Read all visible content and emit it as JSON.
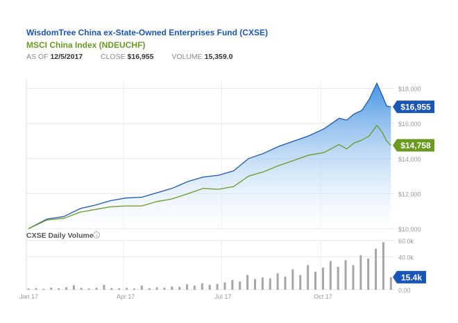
{
  "header": {
    "fund_title": "WisdomTree China ex-State-Owned Enterprises Fund (CXSE)",
    "index_title": "MSCI China Index (NDEUCHF)",
    "as_of_label": "AS OF",
    "as_of_value": "12/5/2017",
    "close_label": "CLOSE",
    "close_value": "$16,955",
    "volume_label": "VOLUME",
    "volume_value": "15,359.0"
  },
  "colors": {
    "fund": "#1a56b8",
    "index": "#6a9a1f",
    "fund_fill_top": "#3d8fe0",
    "fund_fill_bottom": "#ffffff",
    "volume_bar": "#a6a6a6"
  },
  "chart_data": [
    {
      "type": "area",
      "ylim": [
        10000,
        18500
      ],
      "x_tick_labels": [
        "Jan 17",
        "Apr 17",
        "Jul 17",
        "Oct 17"
      ],
      "x_tick_dates": [
        "2017-01-01",
        "2017-04-01",
        "2017-07-01",
        "2017-10-01"
      ],
      "y_ticks": [
        10000,
        12000,
        14000,
        16000,
        18000
      ],
      "y_tick_labels": [
        "$10,000",
        "$12,000",
        "$14,000",
        "$16,000",
        "$18,000"
      ],
      "grid": true,
      "series": [
        {
          "name": "WisdomTree China ex-State-Owned Enterprises Fund (CXSE)",
          "end_label": "$16,955",
          "points": [
            [
              "2017-01-03",
              10000
            ],
            [
              "2017-01-20",
              10550
            ],
            [
              "2017-02-05",
              10700
            ],
            [
              "2017-02-20",
              11150
            ],
            [
              "2017-03-06",
              11350
            ],
            [
              "2017-03-20",
              11600
            ],
            [
              "2017-04-03",
              11750
            ],
            [
              "2017-04-18",
              11800
            ],
            [
              "2017-05-02",
              12050
            ],
            [
              "2017-05-16",
              12300
            ],
            [
              "2017-05-31",
              12700
            ],
            [
              "2017-06-14",
              12950
            ],
            [
              "2017-06-28",
              13050
            ],
            [
              "2017-07-12",
              13300
            ],
            [
              "2017-07-26",
              14000
            ],
            [
              "2017-08-09",
              14300
            ],
            [
              "2017-08-23",
              14700
            ],
            [
              "2017-09-06",
              15000
            ],
            [
              "2017-09-20",
              15300
            ],
            [
              "2017-10-04",
              15700
            ],
            [
              "2017-10-18",
              16300
            ],
            [
              "2017-10-25",
              16200
            ],
            [
              "2017-11-01",
              16550
            ],
            [
              "2017-11-08",
              16750
            ],
            [
              "2017-11-15",
              17400
            ],
            [
              "2017-11-22",
              18300
            ],
            [
              "2017-11-27",
              17600
            ],
            [
              "2017-12-01",
              17000
            ],
            [
              "2017-12-05",
              16955
            ]
          ]
        },
        {
          "name": "MSCI China Index (NDEUCHF)",
          "end_label": "$14,758",
          "points": [
            [
              "2017-01-03",
              10000
            ],
            [
              "2017-01-20",
              10500
            ],
            [
              "2017-02-05",
              10600
            ],
            [
              "2017-02-20",
              10950
            ],
            [
              "2017-03-06",
              11100
            ],
            [
              "2017-03-20",
              11250
            ],
            [
              "2017-04-03",
              11300
            ],
            [
              "2017-04-18",
              11300
            ],
            [
              "2017-05-02",
              11550
            ],
            [
              "2017-05-16",
              11700
            ],
            [
              "2017-05-31",
              12000
            ],
            [
              "2017-06-14",
              12300
            ],
            [
              "2017-06-28",
              12250
            ],
            [
              "2017-07-12",
              12400
            ],
            [
              "2017-07-26",
              13000
            ],
            [
              "2017-08-09",
              13250
            ],
            [
              "2017-08-23",
              13600
            ],
            [
              "2017-09-06",
              13900
            ],
            [
              "2017-09-20",
              14200
            ],
            [
              "2017-10-04",
              14350
            ],
            [
              "2017-10-18",
              14800
            ],
            [
              "2017-10-25",
              14550
            ],
            [
              "2017-11-01",
              14900
            ],
            [
              "2017-11-08",
              15050
            ],
            [
              "2017-11-15",
              15300
            ],
            [
              "2017-11-22",
              15900
            ],
            [
              "2017-11-27",
              15500
            ],
            [
              "2017-12-01",
              15000
            ],
            [
              "2017-12-05",
              14758
            ]
          ]
        }
      ]
    },
    {
      "type": "bar",
      "title": "CXSE Daily Volume",
      "ylim": [
        0,
        60000
      ],
      "y_ticks": [
        0,
        40000,
        60000
      ],
      "y_tick_labels": [
        "0.00",
        "40.0k",
        "60.0k"
      ],
      "last_value_label": "15.4k",
      "dates": [
        "2017-01-03",
        "2017-01-10",
        "2017-01-17",
        "2017-01-24",
        "2017-01-31",
        "2017-02-07",
        "2017-02-14",
        "2017-02-21",
        "2017-02-28",
        "2017-03-07",
        "2017-03-14",
        "2017-03-21",
        "2017-03-28",
        "2017-04-04",
        "2017-04-11",
        "2017-04-18",
        "2017-04-25",
        "2017-05-02",
        "2017-05-09",
        "2017-05-16",
        "2017-05-23",
        "2017-05-30",
        "2017-06-06",
        "2017-06-13",
        "2017-06-20",
        "2017-06-27",
        "2017-07-04",
        "2017-07-11",
        "2017-07-18",
        "2017-07-25",
        "2017-08-01",
        "2017-08-08",
        "2017-08-15",
        "2017-08-22",
        "2017-08-29",
        "2017-09-05",
        "2017-09-12",
        "2017-09-19",
        "2017-09-26",
        "2017-10-03",
        "2017-10-10",
        "2017-10-17",
        "2017-10-24",
        "2017-10-31",
        "2017-11-07",
        "2017-11-14",
        "2017-11-21",
        "2017-11-28",
        "2017-12-05"
      ],
      "values": [
        1500,
        2000,
        1200,
        2500,
        1800,
        3000,
        5500,
        2200,
        1500,
        2500,
        6000,
        2000,
        1800,
        2200,
        1500,
        5000,
        2000,
        3000,
        2500,
        4000,
        3500,
        6500,
        5000,
        8000,
        6000,
        7000,
        9000,
        12000,
        10000,
        18000,
        13000,
        15000,
        14000,
        20000,
        16000,
        25000,
        18000,
        30000,
        22000,
        27000,
        35000,
        28000,
        36000,
        30000,
        42000,
        38000,
        50000,
        58000,
        15359
      ]
    }
  ]
}
